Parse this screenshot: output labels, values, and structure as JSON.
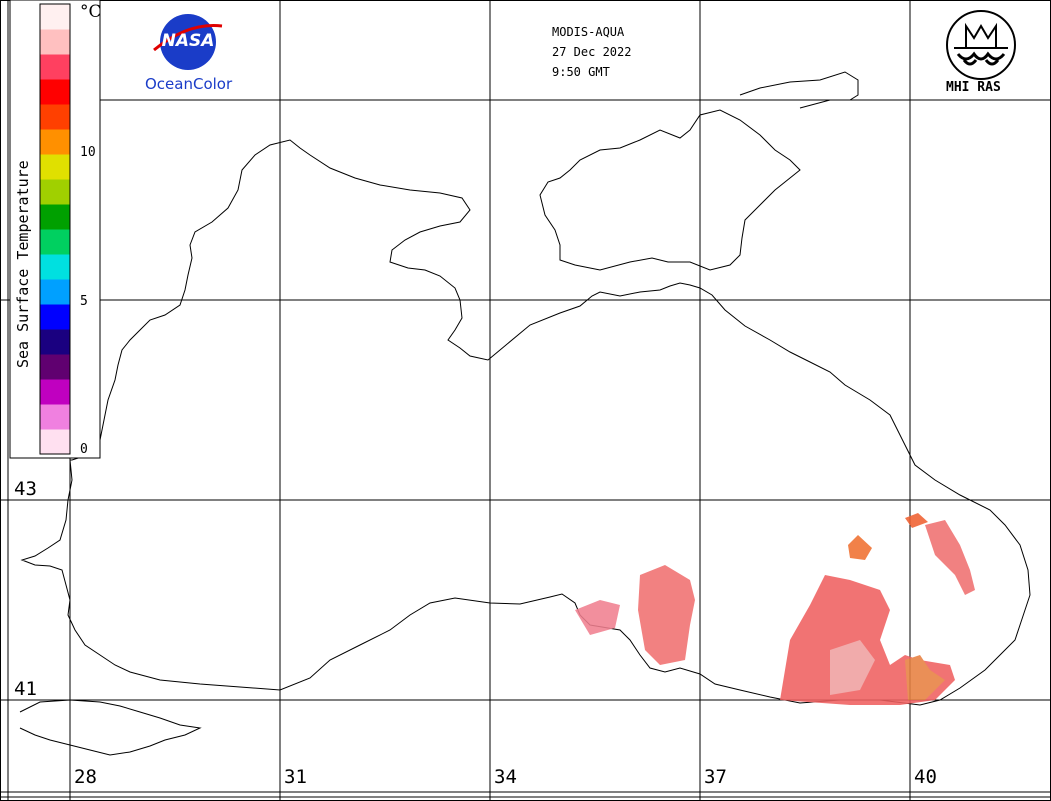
{
  "header": {
    "satellite": "MODIS-AQUA",
    "date": "27 Dec 2022",
    "time": "9:50 GMT"
  },
  "logos": {
    "nasa_text": "NASA",
    "oceancolor": "OceanColor",
    "mhi": "MHI RAS"
  },
  "colorbar": {
    "title": "Sea Surface Temperature",
    "unit": "°C",
    "ticks": [
      "10",
      "5",
      "0"
    ],
    "colors": [
      "#ffe0f0",
      "#f080e0",
      "#c000c0",
      "#600070",
      "#1a0080",
      "#0000ff",
      "#00a0ff",
      "#00e0e0",
      "#00d060",
      "#00a000",
      "#a0d000",
      "#e0e000",
      "#ff9000",
      "#ff4000",
      "#ff0000",
      "#ff4060",
      "#ffc0c0",
      "#fff0f0"
    ]
  },
  "axes": {
    "latitudes": [
      "43",
      "41"
    ],
    "longitudes": [
      "28",
      "31",
      "34",
      "37",
      "40"
    ]
  }
}
